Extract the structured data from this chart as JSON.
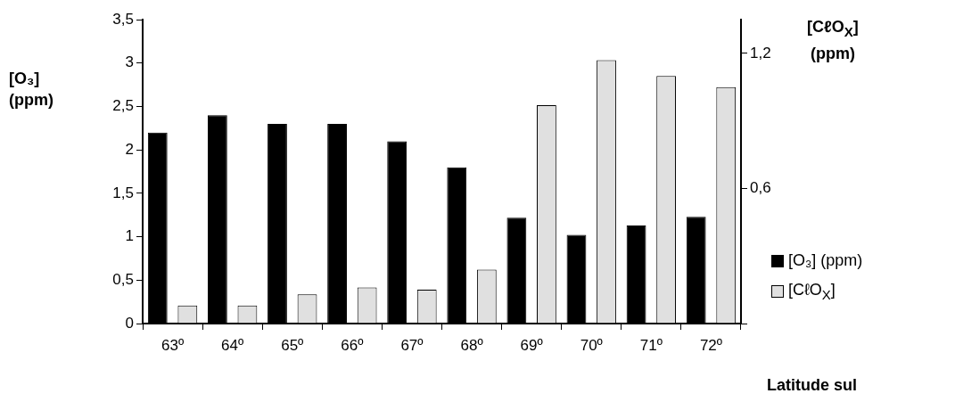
{
  "chart_data": {
    "type": "bar",
    "xlabel": "Latitude sul",
    "ylabel": "[O₃]\n(ppm)",
    "y2label": "[CℓO$_{X}$]\n(ppm)",
    "categories": [
      "63º",
      "64º",
      "65º",
      "66º",
      "67º",
      "68º",
      "69º",
      "70º",
      "71º",
      "72º"
    ],
    "series": [
      {
        "name": "[O₃] (ppm)",
        "color": "#000000",
        "values": [
          2.2,
          2.4,
          2.3,
          2.3,
          2.1,
          1.8,
          1.22,
          1.02,
          1.13,
          1.23
        ]
      },
      {
        "name": "[CℓO$_{X}$]",
        "color": "#e0e0e0",
        "axis": "y2",
        "values": [
          0.08,
          0.08,
          0.13,
          0.16,
          0.15,
          0.24,
          0.97,
          1.17,
          1.1,
          1.05
        ]
      }
    ],
    "ylim": [
      0,
      3.5
    ],
    "yticks": [
      {
        "value": 0,
        "label": "0"
      },
      {
        "value": 0.5,
        "label": "0,5"
      },
      {
        "value": 1,
        "label": "1"
      },
      {
        "value": 1.5,
        "label": "1,5"
      },
      {
        "value": 2,
        "label": "2"
      },
      {
        "value": 2.5,
        "label": "2,5"
      },
      {
        "value": 3,
        "label": "3"
      },
      {
        "value": 3.5,
        "label": "3,5"
      }
    ],
    "y2lim": [
      0,
      1.35
    ],
    "y2ticks": [
      {
        "value": 0,
        "label": null
      },
      {
        "value": 0.6,
        "label": "0,6"
      },
      {
        "value": 1.2,
        "label": "1,2"
      }
    ],
    "grid": false,
    "legend": "right"
  }
}
